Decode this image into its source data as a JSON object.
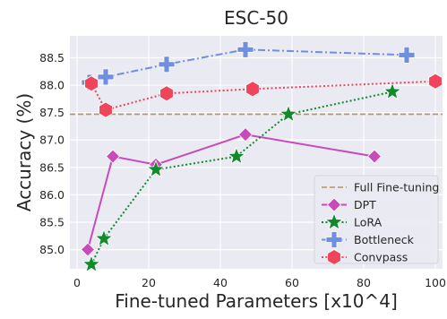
{
  "chart_data": {
    "type": "line",
    "title": "ESC-50",
    "xlabel": "Fine-tuned Parameters [x10^4]",
    "ylabel": "Accuracy (%)",
    "xlim": [
      -2,
      102
    ],
    "ylim": [
      84.65,
      88.9
    ],
    "xticks": [
      "0",
      "20",
      "40",
      "60",
      "80",
      "100"
    ],
    "yticks": [
      "85.0",
      "85.5",
      "86.0",
      "86.5",
      "87.0",
      "87.5",
      "88.0",
      "88.5"
    ],
    "grid": true,
    "background": "#eaeaf2",
    "legend_position": "bottom-right",
    "reference_line": {
      "name": "Full Fine-tuning",
      "y": 87.47,
      "color": "#b5945f",
      "style": "dashed"
    },
    "series": [
      {
        "name": "DPT",
        "color": "#c94bbb",
        "marker": "diamond",
        "style": "solid",
        "x": [
          3,
          10,
          22,
          47,
          83
        ],
        "y": [
          85.0,
          86.7,
          86.55,
          87.1,
          86.7
        ]
      },
      {
        "name": "LoRA",
        "color": "#118a2c",
        "marker": "star",
        "style": "dotted",
        "x": [
          4,
          7.5,
          22,
          44.5,
          59,
          88
        ],
        "y": [
          84.73,
          85.2,
          86.46,
          86.7,
          87.47,
          87.88
        ]
      },
      {
        "name": "Bottleneck",
        "color": "#6f8fe0",
        "marker": "plus",
        "style": "dashdot",
        "x": [
          3.5,
          8,
          25,
          47,
          92
        ],
        "y": [
          88.05,
          88.15,
          88.38,
          88.65,
          88.55
        ]
      },
      {
        "name": "Convpass",
        "color": "#f0445a",
        "marker": "hexagon",
        "style": "dotted",
        "x": [
          4,
          8,
          25,
          49,
          100
        ],
        "y": [
          88.03,
          87.55,
          87.85,
          87.93,
          88.07
        ]
      }
    ]
  }
}
